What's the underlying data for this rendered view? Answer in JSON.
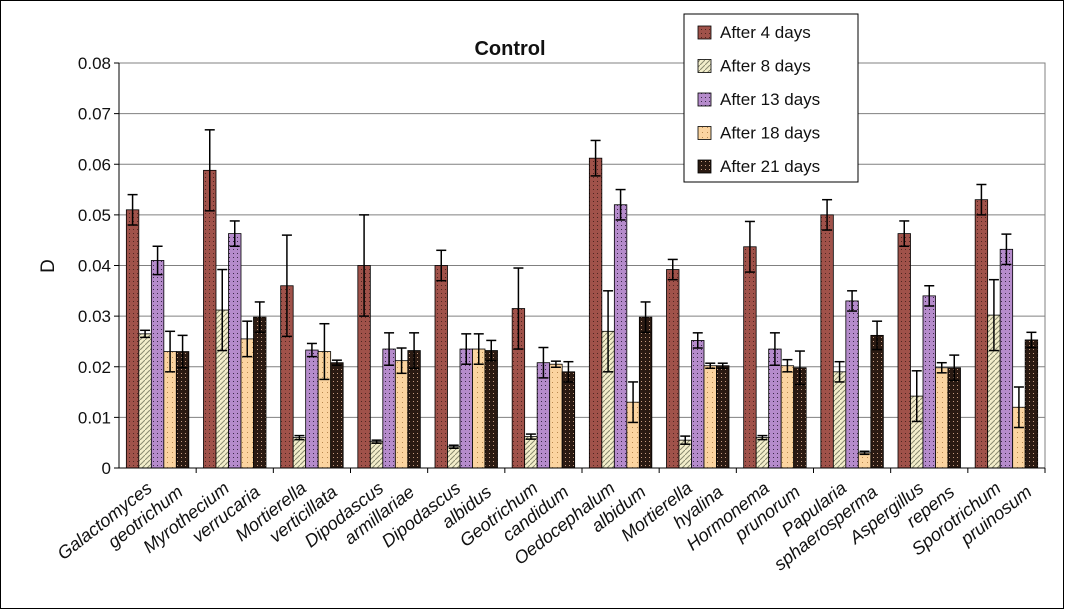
{
  "chart_data": {
    "type": "bar",
    "title": "Control",
    "xlabel": "",
    "ylabel": "D",
    "ylim": [
      0,
      0.08
    ],
    "yticks": [
      "0",
      "0.01",
      "0.02",
      "0.03",
      "0.04",
      "0.05",
      "0.06",
      "0.07",
      "0.08"
    ],
    "grid": true,
    "legend_position": "top-right",
    "categories": [
      [
        "Galactomyces",
        "geotrichum"
      ],
      [
        "Myrothecium",
        "verrucaria"
      ],
      [
        "Mortierella",
        "verticillata"
      ],
      [
        "Dipodascus",
        "armillariae"
      ],
      [
        "Dipodascus",
        "albidus"
      ],
      [
        "Geotrichum",
        "candidum"
      ],
      [
        "Oedocephalum",
        "albidum"
      ],
      [
        "Mortierella",
        "hyalina"
      ],
      [
        "Hormonema",
        "prunorum"
      ],
      [
        "Papularia",
        "sphaerosperma"
      ],
      [
        "Aspergillus",
        "repens"
      ],
      [
        "Sporotrichum",
        "pruinosum"
      ]
    ],
    "series": [
      {
        "name": "After 4 days",
        "color": "#a0524a",
        "pattern": "dots-dark",
        "values": [
          0.051,
          0.0588,
          0.036,
          0.04,
          0.04,
          0.0315,
          0.0612,
          0.0392,
          0.0437,
          0.05,
          0.0463,
          0.053
        ],
        "errors": [
          0.003,
          0.008,
          0.01,
          0.01,
          0.003,
          0.008,
          0.0035,
          0.002,
          0.005,
          0.003,
          0.0025,
          0.003
        ]
      },
      {
        "name": "After 8 days",
        "color": "#f2edc6",
        "pattern": "diagonal",
        "values": [
          0.0265,
          0.0312,
          0.006,
          0.0052,
          0.0042,
          0.0062,
          0.027,
          0.0055,
          0.006,
          0.019,
          0.0142,
          0.0302
        ],
        "errors": [
          0.0007,
          0.008,
          0.0004,
          0.0003,
          0.0003,
          0.0005,
          0.008,
          0.0008,
          0.0004,
          0.002,
          0.005,
          0.007
        ]
      },
      {
        "name": "After 13 days",
        "color": "#b58bcb",
        "pattern": "dots-purple",
        "values": [
          0.041,
          0.0463,
          0.0233,
          0.0235,
          0.0235,
          0.0208,
          0.052,
          0.0252,
          0.0235,
          0.033,
          0.034,
          0.0432
        ],
        "errors": [
          0.0028,
          0.0025,
          0.0013,
          0.0032,
          0.003,
          0.003,
          0.003,
          0.0015,
          0.0032,
          0.002,
          0.002,
          0.003
        ]
      },
      {
        "name": "After 18 days",
        "color": "#fbd4a0",
        "pattern": "dots-light",
        "values": [
          0.023,
          0.0255,
          0.023,
          0.0212,
          0.0235,
          0.0205,
          0.013,
          0.0202,
          0.0202,
          0.003,
          0.0198,
          0.012
        ],
        "errors": [
          0.004,
          0.0035,
          0.0055,
          0.0025,
          0.003,
          0.0006,
          0.004,
          0.0005,
          0.0012,
          0.0003,
          0.001,
          0.004
        ]
      },
      {
        "name": "After 21 days",
        "color": "#4a2a1a",
        "pattern": "dots-black",
        "values": [
          0.023,
          0.0298,
          0.0208,
          0.0232,
          0.0232,
          0.019,
          0.0298,
          0.0202,
          0.0198,
          0.0262,
          0.0198,
          0.0253
        ],
        "errors": [
          0.0032,
          0.003,
          0.0005,
          0.0035,
          0.002,
          0.002,
          0.003,
          0.0005,
          0.0033,
          0.0028,
          0.0025,
          0.0015
        ]
      }
    ]
  }
}
